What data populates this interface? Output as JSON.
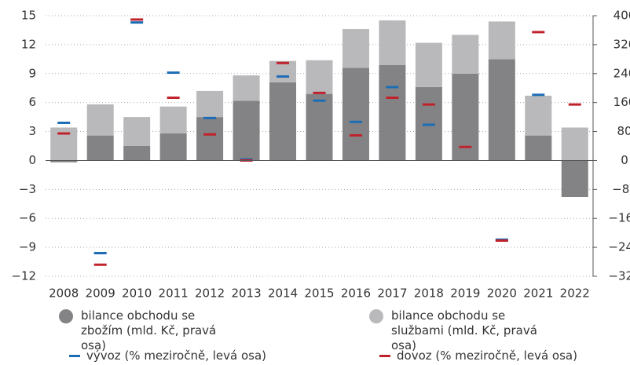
{
  "chart_data": {
    "type": "bar",
    "stacked": true,
    "grid": true,
    "categories": [
      "2008",
      "2009",
      "2010",
      "2011",
      "2012",
      "2013",
      "2014",
      "2015",
      "2016",
      "2017",
      "2018",
      "2019",
      "2020",
      "2021",
      "2022"
    ],
    "series": [
      {
        "name": "bilance obchodu se zbožím (mld. Kč, pravá osa)",
        "color": "#838385",
        "axis": "y2",
        "type": "bar",
        "values": [
          -5,
          69,
          40,
          75,
          120,
          165,
          216,
          184,
          256,
          264,
          203,
          240,
          280,
          69,
          -101
        ]
      },
      {
        "name": "bilance obchodu se službami (mld. Kč, pravá osa)",
        "color": "#b9b9bb",
        "axis": "y2",
        "type": "bar",
        "values": [
          91,
          86,
          80,
          74,
          72,
          70,
          59,
          93,
          107,
          123,
          122,
          107,
          104,
          110,
          91
        ]
      },
      {
        "name": "vývoz (% meziročně, levá osa)",
        "color": "#1d6db5",
        "axis": "y",
        "type": "marker",
        "values": [
          3.9,
          -9.6,
          14.3,
          9.1,
          4.4,
          0.1,
          8.7,
          6.2,
          4.0,
          7.6,
          3.7,
          null,
          -8.2,
          6.8,
          null
        ]
      },
      {
        "name": "dovoz (% meziročně, levá osa)",
        "color": "#c0222c",
        "axis": "y",
        "type": "marker",
        "values": [
          2.8,
          -10.8,
          14.6,
          6.5,
          2.7,
          0.0,
          10.1,
          7.0,
          2.6,
          6.5,
          5.8,
          1.4,
          -8.3,
          13.3,
          5.8
        ]
      }
    ],
    "ylim": [
      -12,
      15
    ],
    "yticks": [
      {
        "value": -12,
        "label": "−12"
      },
      {
        "value": -9,
        "label": "−9"
      },
      {
        "value": -6,
        "label": "−6"
      },
      {
        "value": -3,
        "label": "−3"
      },
      0,
      3,
      6,
      9,
      12,
      15
    ],
    "y2lim": [
      -320,
      400
    ],
    "y2ticks": [
      {
        "value": -320,
        "label": "−320"
      },
      {
        "value": -240,
        "label": "−240"
      },
      {
        "value": -160,
        "label": "−160"
      },
      {
        "value": -80,
        "label": "−80"
      },
      0,
      80,
      160,
      240,
      320,
      400
    ]
  }
}
